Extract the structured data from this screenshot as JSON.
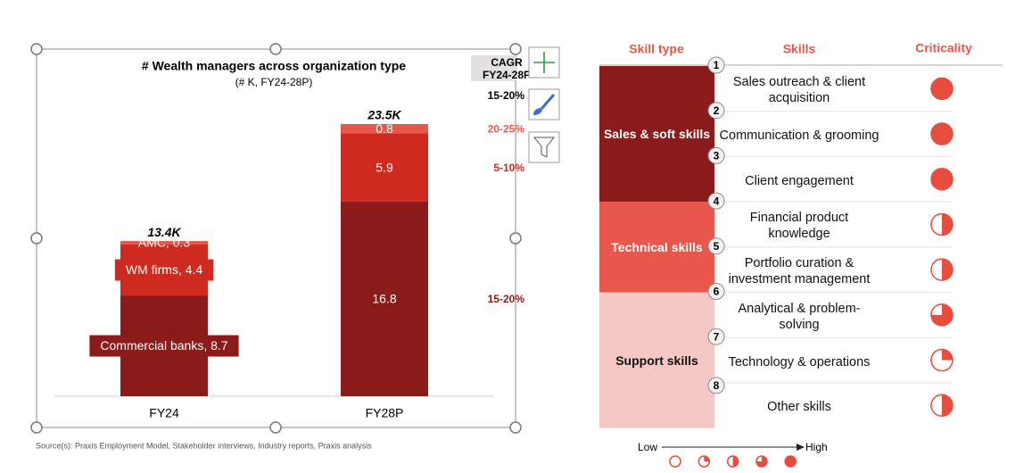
{
  "chart_data": {
    "type": "bar",
    "stacked": true,
    "title": "# Wealth managers across organization type",
    "subtitle": "(# K, FY24-28P)",
    "categories": [
      "FY24",
      "FY28P"
    ],
    "series": [
      {
        "name": "Commercial banks",
        "color": "#8b1a1a",
        "values": [
          8.7,
          16.8
        ],
        "value_labels": [
          "Commercial banks, 8.7",
          "16.8"
        ],
        "cagr": "15-20%"
      },
      {
        "name": "WM firms",
        "color": "#cf2a1f",
        "values": [
          4.4,
          5.9
        ],
        "value_labels": [
          "WM firms, 4.4",
          "5.9"
        ],
        "cagr": "5-10%"
      },
      {
        "name": "AMC",
        "color": "#e8574b",
        "values": [
          0.3,
          0.8
        ],
        "value_labels": [
          "AMC, 0.3",
          "0.8"
        ],
        "cagr": "20-25%"
      }
    ],
    "totals": {
      "values": [
        13.4,
        23.5
      ],
      "value_labels": [
        "13.4K",
        "23.5K"
      ]
    },
    "cagr_header": [
      "CAGR",
      "FY24-28P"
    ],
    "total_cagr": "15-20%"
  },
  "source": "Source(s): Praxis Employment Model, Stakeholder interviews, Industry reports, Praxis analysis",
  "table": {
    "headers": [
      "Skill type",
      "Skills",
      "Criticality"
    ],
    "groups": [
      {
        "label": "Sales & soft skills",
        "color": "#8b1a1a",
        "rows": [
          {
            "number": "1",
            "skill": "Sales outreach & client acquisition",
            "criticality": 1
          },
          {
            "number": "2",
            "skill": "Communication & grooming",
            "criticality": 1
          },
          {
            "number": "3",
            "skill": "Client engagement",
            "criticality": 1
          }
        ]
      },
      {
        "label": "Technical skills",
        "color": "#e8574b",
        "rows": [
          {
            "number": "4",
            "skill": "Financial product knowledge",
            "criticality": 0.5
          },
          {
            "number": "5",
            "skill": "Portfolio curation & investment management",
            "criticality": 0.5
          }
        ]
      },
      {
        "label": "Support skills",
        "color": "#f5c8c5",
        "rows": [
          {
            "number": "6",
            "skill": "Analytical & problem-solving",
            "criticality": 0.75
          },
          {
            "number": "7",
            "skill": "Technology & operations",
            "criticality": 0.25
          },
          {
            "number": "8",
            "skill": "Other skills",
            "criticality": 0.5
          }
        ]
      }
    ]
  },
  "legend": {
    "low": "Low",
    "high": "High",
    "levels": [
      0,
      0.25,
      0.5,
      0.75,
      1
    ]
  }
}
